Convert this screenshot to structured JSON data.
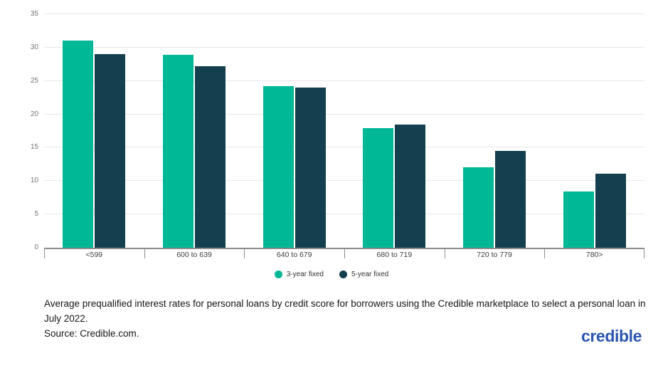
{
  "chart_data": {
    "type": "bar",
    "categories": [
      "<599",
      "600 to 639",
      "640 to 679",
      "680 to 719",
      "720 to 779",
      "780>"
    ],
    "series": [
      {
        "name": "3-year fixed",
        "color": "#00b796",
        "values": [
          31.1,
          28.9,
          24.2,
          17.9,
          12.1,
          8.4
        ]
      },
      {
        "name": "5-year fixed",
        "color": "#133f4e",
        "values": [
          29.0,
          27.2,
          24.0,
          18.5,
          14.5,
          11.1
        ]
      }
    ],
    "title": "",
    "xlabel": "",
    "ylabel": "",
    "ylim": [
      0,
      35
    ],
    "yticks": [
      0,
      5,
      10,
      15,
      20,
      25,
      30,
      35
    ],
    "grid": true,
    "legend_position": "bottom"
  },
  "caption": {
    "text": "Average prequalified interest rates for personal loans by credit score for borrowers using the Credible marketplace to select a personal loan in July 2022.",
    "source": "Source: Credible.com."
  },
  "footer": {
    "logo_text": "credible"
  },
  "colors": {
    "series_teal": "#00b796",
    "series_dark": "#133f4e",
    "gridline": "#e7e7e7",
    "axis": "#8c8c8c",
    "logo_blue": "#2a55ae"
  }
}
